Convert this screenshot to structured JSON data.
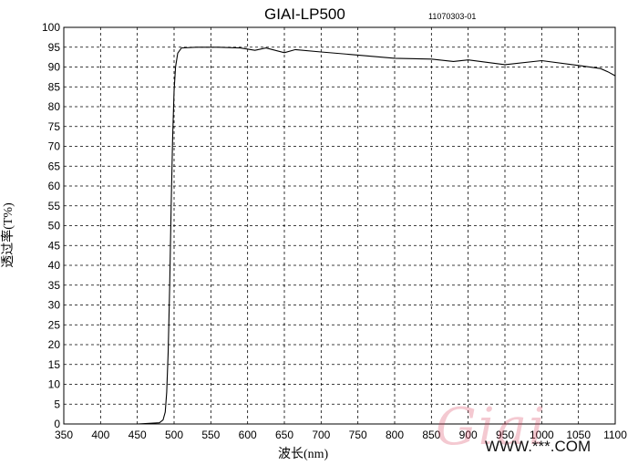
{
  "chart_data": {
    "type": "line",
    "title": "GIAI-LP500",
    "code": "11070303-01",
    "xlabel": "波长(nm)",
    "ylabel": "透过率(T%)",
    "xlim": [
      350,
      1100
    ],
    "ylim": [
      0,
      100
    ],
    "grid": true,
    "x_ticks": [
      350,
      400,
      450,
      500,
      550,
      600,
      650,
      700,
      750,
      800,
      850,
      900,
      950,
      1000,
      1050,
      1100
    ],
    "y_ticks": [
      0,
      5,
      10,
      15,
      20,
      25,
      30,
      35,
      40,
      45,
      50,
      55,
      60,
      65,
      70,
      75,
      80,
      85,
      90,
      95,
      100
    ],
    "series": [
      {
        "color": "#000000",
        "x": [
          350,
          400,
          450,
          480,
          485,
          488,
          490,
          492,
          494,
          496,
          498,
          500,
          502,
          505,
          510,
          530,
          560,
          590,
          610,
          625,
          650,
          665,
          700,
          750,
          800,
          850,
          880,
          900,
          950,
          1000,
          1050,
          1080,
          1090,
          1100
        ],
        "y": [
          0,
          0,
          0,
          0.3,
          1,
          3,
          8,
          18,
          35,
          55,
          72,
          84,
          90,
          93.5,
          94.8,
          95,
          95,
          94.8,
          94.2,
          94.8,
          93.6,
          94.4,
          93.8,
          93,
          92.2,
          92,
          91.4,
          91.8,
          90.6,
          91.6,
          90.4,
          89.6,
          88.8,
          87.8
        ]
      }
    ]
  },
  "watermark": {
    "logo_text": "Giai",
    "url_text": "WWW.***.COM"
  }
}
